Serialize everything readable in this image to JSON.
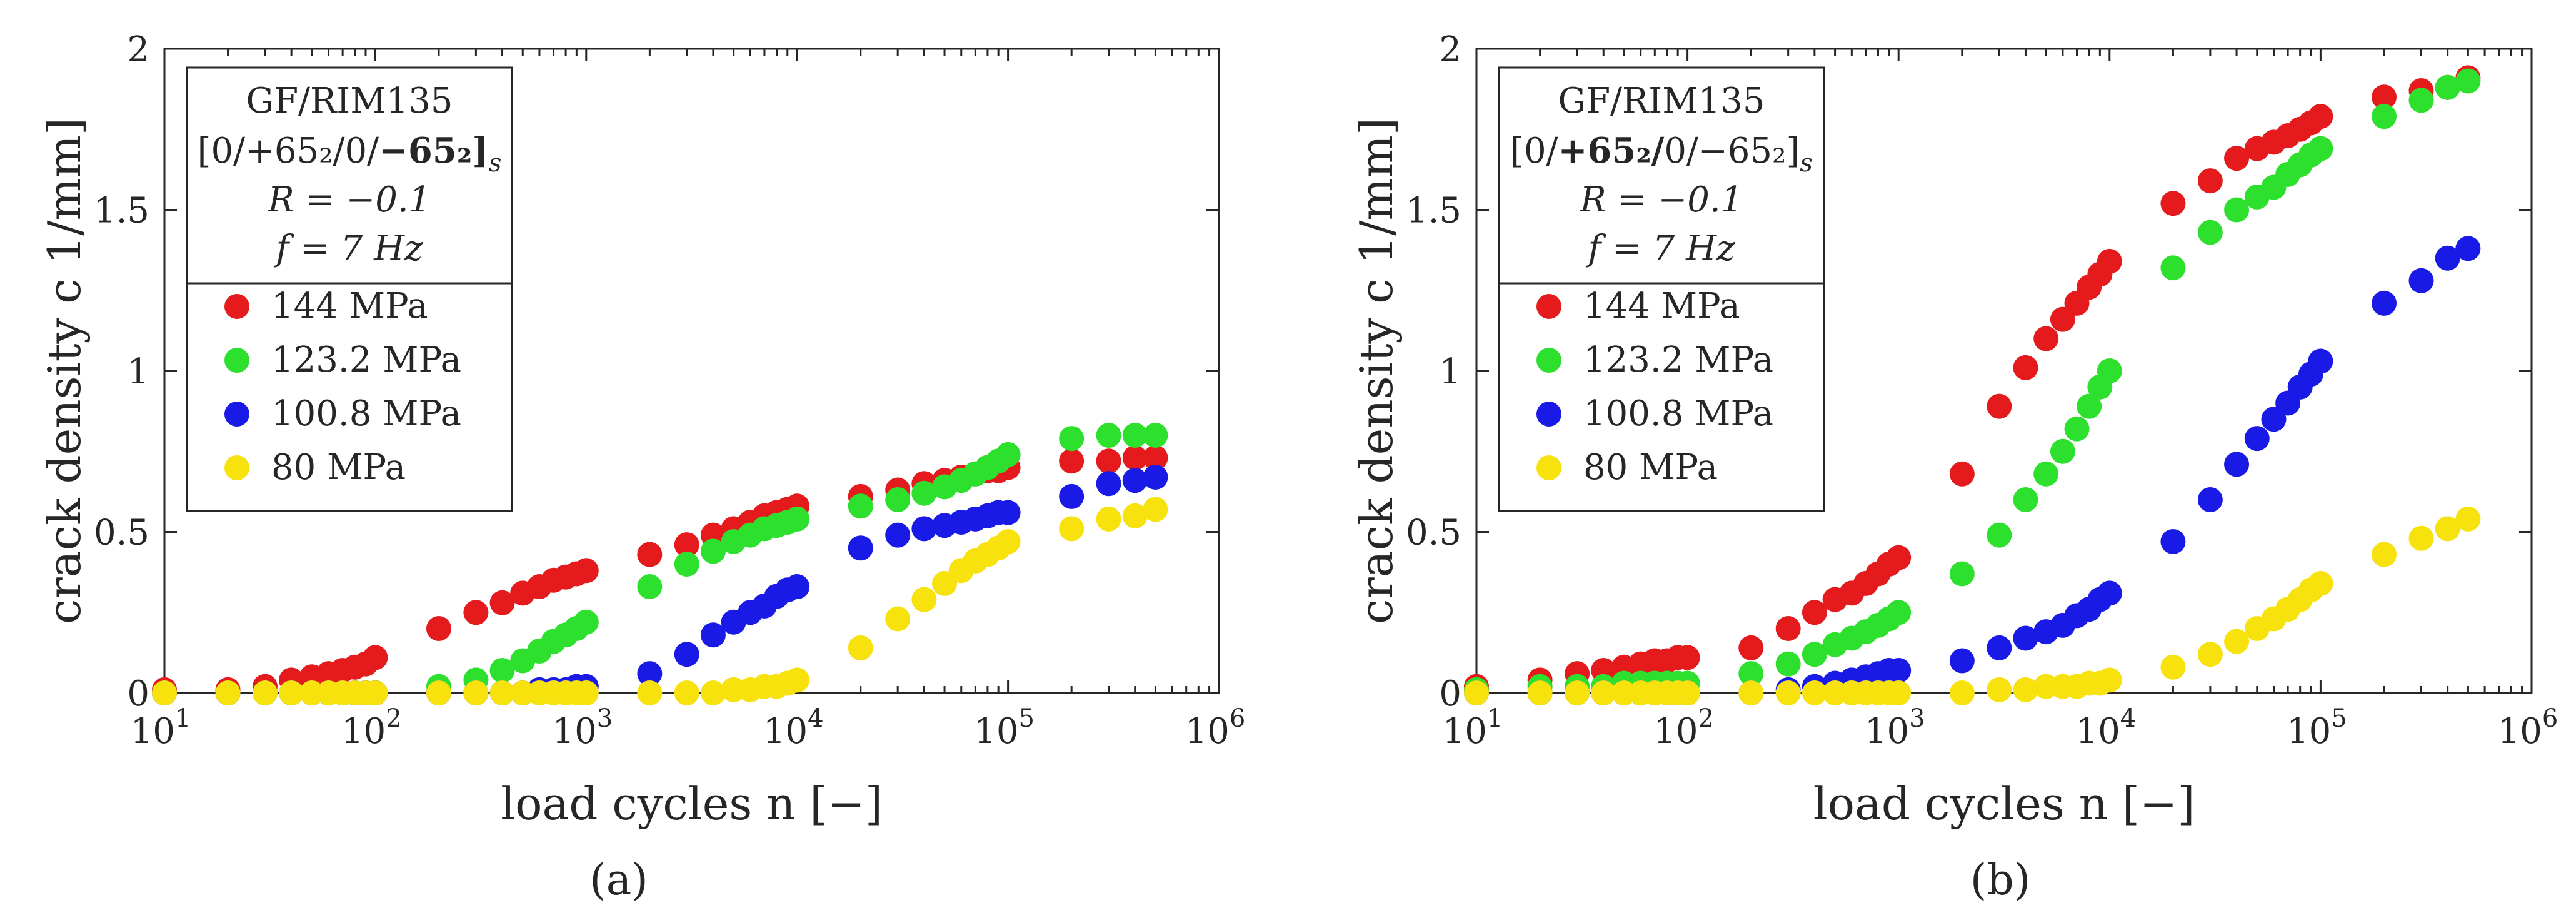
{
  "chart_data": [
    {
      "type": "scatter",
      "caption": "(a)",
      "xlabel": "load cycles n [−]",
      "ylabel": "crack density c  1/mm]",
      "xscale": "log",
      "xlim": [
        10,
        1000000
      ],
      "ylim": [
        0,
        2
      ],
      "x_ticks": [
        10,
        100,
        1000,
        10000,
        100000,
        1000000
      ],
      "y_ticks": [
        "0",
        "0.5",
        "1",
        "1.5",
        "2"
      ],
      "info": {
        "material": "GF/RIM135",
        "layup": "[0/+65₂/0/−65₂]s",
        "layup_bold": "second",
        "ratio": "R = −0.1",
        "frequency": "f = 7 Hz"
      },
      "legend_position": "top-left",
      "series": [
        {
          "name": "144 MPa",
          "color": "#e41a1c",
          "x": [
            10,
            20,
            30,
            40,
            50,
            60,
            70,
            80,
            90,
            100,
            200,
            300,
            400,
            500,
            600,
            700,
            800,
            900,
            1000,
            2000,
            3000,
            4000,
            5000,
            6000,
            7000,
            8000,
            9000,
            10000,
            20000,
            30000,
            40000,
            50000,
            60000,
            70000,
            80000,
            90000,
            100000,
            200000,
            300000,
            400000,
            500000
          ],
          "y": [
            0.01,
            0.01,
            0.02,
            0.04,
            0.05,
            0.06,
            0.07,
            0.08,
            0.09,
            0.11,
            0.2,
            0.25,
            0.28,
            0.31,
            0.33,
            0.35,
            0.36,
            0.37,
            0.38,
            0.43,
            0.46,
            0.49,
            0.51,
            0.53,
            0.55,
            0.56,
            0.57,
            0.58,
            0.61,
            0.63,
            0.65,
            0.66,
            0.67,
            0.68,
            0.69,
            0.69,
            0.7,
            0.72,
            0.72,
            0.73,
            0.73
          ]
        },
        {
          "name": "123.2 MPa",
          "color": "#2ee02e",
          "x": [
            10,
            20,
            30,
            40,
            50,
            60,
            70,
            80,
            90,
            100,
            200,
            300,
            400,
            500,
            600,
            700,
            800,
            900,
            1000,
            2000,
            3000,
            4000,
            5000,
            6000,
            7000,
            8000,
            9000,
            10000,
            20000,
            30000,
            40000,
            50000,
            60000,
            70000,
            80000,
            90000,
            100000,
            200000,
            300000,
            400000,
            500000
          ],
          "y": [
            0.0,
            0.0,
            0.0,
            0.0,
            0.0,
            0.0,
            0.0,
            0.0,
            0.0,
            0.0,
            0.02,
            0.04,
            0.07,
            0.1,
            0.13,
            0.16,
            0.18,
            0.2,
            0.22,
            0.33,
            0.4,
            0.44,
            0.47,
            0.49,
            0.51,
            0.52,
            0.53,
            0.54,
            0.58,
            0.6,
            0.62,
            0.64,
            0.66,
            0.68,
            0.7,
            0.72,
            0.74,
            0.79,
            0.8,
            0.8,
            0.8
          ]
        },
        {
          "name": "100.8 MPa",
          "color": "#1a1ae6",
          "x": [
            10,
            20,
            30,
            40,
            50,
            60,
            70,
            80,
            90,
            100,
            200,
            300,
            400,
            500,
            600,
            700,
            800,
            900,
            1000,
            2000,
            3000,
            4000,
            5000,
            6000,
            7000,
            8000,
            9000,
            10000,
            20000,
            30000,
            40000,
            50000,
            60000,
            70000,
            80000,
            90000,
            100000,
            200000,
            300000,
            400000,
            500000
          ],
          "y": [
            0.0,
            0.0,
            0.0,
            0.0,
            0.0,
            0.0,
            0.0,
            0.0,
            0.0,
            0.0,
            0.0,
            0.0,
            0.0,
            0.0,
            0.01,
            0.01,
            0.01,
            0.02,
            0.02,
            0.06,
            0.12,
            0.18,
            0.22,
            0.25,
            0.27,
            0.3,
            0.32,
            0.33,
            0.45,
            0.49,
            0.51,
            0.52,
            0.53,
            0.54,
            0.55,
            0.56,
            0.56,
            0.61,
            0.65,
            0.66,
            0.67
          ]
        },
        {
          "name": "80 MPa",
          "color": "#f7e20e",
          "x": [
            10,
            20,
            30,
            40,
            50,
            60,
            70,
            80,
            90,
            100,
            200,
            300,
            400,
            500,
            600,
            700,
            800,
            900,
            1000,
            2000,
            3000,
            4000,
            5000,
            6000,
            7000,
            8000,
            9000,
            10000,
            20000,
            30000,
            40000,
            50000,
            60000,
            70000,
            80000,
            90000,
            100000,
            200000,
            300000,
            400000,
            500000
          ],
          "y": [
            0.0,
            0.0,
            0.0,
            0.0,
            0.0,
            0.0,
            0.0,
            0.0,
            0.0,
            0.0,
            0.0,
            0.0,
            0.0,
            0.0,
            0.0,
            0.0,
            0.0,
            0.0,
            0.0,
            0.0,
            0.0,
            0.0,
            0.01,
            0.01,
            0.02,
            0.02,
            0.03,
            0.04,
            0.14,
            0.23,
            0.29,
            0.34,
            0.38,
            0.41,
            0.43,
            0.45,
            0.47,
            0.51,
            0.54,
            0.55,
            0.57
          ]
        }
      ]
    },
    {
      "type": "scatter",
      "caption": "(b)",
      "xlabel": "load cycles n [−]",
      "ylabel": "crack density c  1/mm]",
      "xscale": "log",
      "xlim": [
        10,
        1000000
      ],
      "ylim": [
        0,
        2
      ],
      "x_ticks": [
        10,
        100,
        1000,
        10000,
        100000,
        1000000
      ],
      "y_ticks": [
        "0",
        "0.5",
        "1",
        "1.5",
        "2"
      ],
      "info": {
        "material": "GF/RIM135",
        "layup": "[0/+65₂/0/−65₂]s",
        "layup_bold": "first",
        "ratio": "R = −0.1",
        "frequency": "f = 7 Hz"
      },
      "legend_position": "top-left",
      "series": [
        {
          "name": "144 MPa",
          "color": "#e41a1c",
          "x": [
            10,
            20,
            30,
            40,
            50,
            60,
            70,
            80,
            90,
            100,
            200,
            300,
            400,
            500,
            600,
            700,
            800,
            900,
            1000,
            2000,
            3000,
            4000,
            5000,
            6000,
            7000,
            8000,
            9000,
            10000,
            20000,
            30000,
            40000,
            50000,
            60000,
            70000,
            80000,
            90000,
            100000,
            200000,
            300000,
            400000,
            500000
          ],
          "y": [
            0.02,
            0.04,
            0.06,
            0.07,
            0.08,
            0.09,
            0.1,
            0.1,
            0.11,
            0.11,
            0.14,
            0.2,
            0.25,
            0.29,
            0.31,
            0.34,
            0.37,
            0.4,
            0.42,
            0.68,
            0.89,
            1.01,
            1.1,
            1.16,
            1.21,
            1.26,
            1.3,
            1.34,
            1.52,
            1.59,
            1.66,
            1.69,
            1.71,
            1.73,
            1.75,
            1.77,
            1.79,
            1.85,
            1.87,
            1.88,
            1.91
          ]
        },
        {
          "name": "123.2 MPa",
          "color": "#2ee02e",
          "x": [
            10,
            20,
            30,
            40,
            50,
            60,
            70,
            80,
            90,
            100,
            200,
            300,
            400,
            500,
            600,
            700,
            800,
            900,
            1000,
            2000,
            3000,
            4000,
            5000,
            6000,
            7000,
            8000,
            9000,
            10000,
            20000,
            30000,
            40000,
            50000,
            60000,
            70000,
            80000,
            90000,
            100000,
            200000,
            300000,
            400000,
            500000
          ],
          "y": [
            0.01,
            0.02,
            0.02,
            0.02,
            0.03,
            0.03,
            0.03,
            0.03,
            0.03,
            0.03,
            0.06,
            0.09,
            0.12,
            0.15,
            0.17,
            0.19,
            0.21,
            0.23,
            0.25,
            0.37,
            0.49,
            0.6,
            0.68,
            0.75,
            0.82,
            0.89,
            0.95,
            1.0,
            1.32,
            1.43,
            1.5,
            1.54,
            1.57,
            1.61,
            1.64,
            1.67,
            1.69,
            1.79,
            1.84,
            1.88,
            1.9
          ]
        },
        {
          "name": "100.8 MPa",
          "color": "#1a1ae6",
          "x": [
            10,
            20,
            30,
            40,
            50,
            60,
            70,
            80,
            90,
            100,
            200,
            300,
            400,
            500,
            600,
            700,
            800,
            900,
            1000,
            2000,
            3000,
            4000,
            5000,
            6000,
            7000,
            8000,
            9000,
            10000,
            20000,
            30000,
            40000,
            50000,
            60000,
            70000,
            80000,
            90000,
            100000,
            200000,
            300000,
            400000,
            500000
          ],
          "y": [
            0.0,
            0.0,
            0.0,
            0.0,
            0.0,
            0.0,
            0.0,
            0.0,
            0.0,
            0.0,
            0.0,
            0.01,
            0.02,
            0.03,
            0.04,
            0.05,
            0.06,
            0.07,
            0.07,
            0.1,
            0.14,
            0.17,
            0.19,
            0.21,
            0.24,
            0.26,
            0.29,
            0.31,
            0.47,
            0.6,
            0.71,
            0.79,
            0.85,
            0.9,
            0.95,
            0.99,
            1.03,
            1.21,
            1.28,
            1.35,
            1.38
          ]
        },
        {
          "name": "80 MPa",
          "color": "#f7e20e",
          "x": [
            10,
            20,
            30,
            40,
            50,
            60,
            70,
            80,
            90,
            100,
            200,
            300,
            400,
            500,
            600,
            700,
            800,
            900,
            1000,
            2000,
            3000,
            4000,
            5000,
            6000,
            7000,
            8000,
            9000,
            10000,
            20000,
            30000,
            40000,
            50000,
            60000,
            70000,
            80000,
            90000,
            100000,
            200000,
            300000,
            400000,
            500000
          ],
          "y": [
            0.0,
            0.0,
            0.0,
            0.0,
            0.0,
            0.0,
            0.0,
            0.0,
            0.0,
            0.0,
            0.0,
            0.0,
            0.0,
            0.0,
            0.0,
            0.0,
            0.0,
            0.0,
            0.0,
            0.0,
            0.01,
            0.01,
            0.02,
            0.02,
            0.02,
            0.03,
            0.03,
            0.04,
            0.08,
            0.12,
            0.16,
            0.2,
            0.23,
            0.26,
            0.29,
            0.32,
            0.34,
            0.43,
            0.48,
            0.51,
            0.54
          ]
        }
      ]
    }
  ]
}
